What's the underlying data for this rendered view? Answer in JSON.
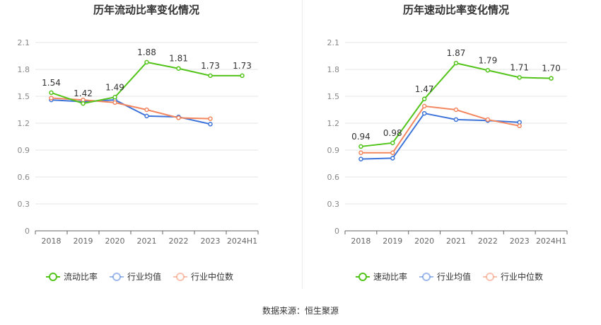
{
  "source_label": "数据来源：恒生聚源",
  "colors": {
    "company": "#52c41a",
    "industry_avg": "#3e74d9",
    "industry_median": "#f4865f",
    "grid": "#e6e6e6",
    "axis": "#666666",
    "text": "#333333"
  },
  "chart_data": [
    {
      "type": "line",
      "title": "历年流动比率变化情况",
      "categories": [
        "2018",
        "2019",
        "2020",
        "2021",
        "2022",
        "2023",
        "2024H1"
      ],
      "ylim": [
        0,
        2.1
      ],
      "yticks": [
        "0",
        "0.3",
        "0.6",
        "0.9",
        "1.2",
        "1.5",
        "1.8",
        "2.1"
      ],
      "grid": true,
      "legend_position": "bottom",
      "series": [
        {
          "name": "流动比率",
          "color": "#52c41a",
          "values": [
            1.54,
            1.42,
            1.49,
            1.88,
            1.81,
            1.73,
            1.73
          ],
          "labels": [
            "1.54",
            "1.42",
            "1.49",
            "1.88",
            "1.81",
            "1.73",
            "1.73"
          ]
        },
        {
          "name": "行业均值",
          "color": "#3e74d9",
          "values": [
            1.46,
            1.44,
            1.46,
            1.28,
            1.27,
            1.19,
            null
          ]
        },
        {
          "name": "行业中位数",
          "color": "#f4865f",
          "values": [
            1.48,
            1.46,
            1.43,
            1.35,
            1.26,
            1.25,
            null
          ]
        }
      ]
    },
    {
      "type": "line",
      "title": "历年速动比率变化情况",
      "categories": [
        "2018",
        "2019",
        "2020",
        "2021",
        "2022",
        "2023",
        "2024H1"
      ],
      "ylim": [
        0,
        2.1
      ],
      "yticks": [
        "0",
        "0.3",
        "0.6",
        "0.9",
        "1.2",
        "1.5",
        "1.8",
        "2.1"
      ],
      "grid": true,
      "legend_position": "bottom",
      "series": [
        {
          "name": "速动比率",
          "color": "#52c41a",
          "values": [
            0.94,
            0.98,
            1.47,
            1.87,
            1.79,
            1.71,
            1.7
          ],
          "labels": [
            "0.94",
            "0.98",
            "1.47",
            "1.87",
            "1.79",
            "1.71",
            "1.70"
          ]
        },
        {
          "name": "行业均值",
          "color": "#3e74d9",
          "values": [
            0.8,
            0.81,
            1.31,
            1.24,
            1.23,
            1.21,
            null
          ]
        },
        {
          "name": "行业中位数",
          "color": "#f4865f",
          "values": [
            0.87,
            0.87,
            1.39,
            1.35,
            1.24,
            1.17,
            null
          ]
        }
      ]
    }
  ]
}
